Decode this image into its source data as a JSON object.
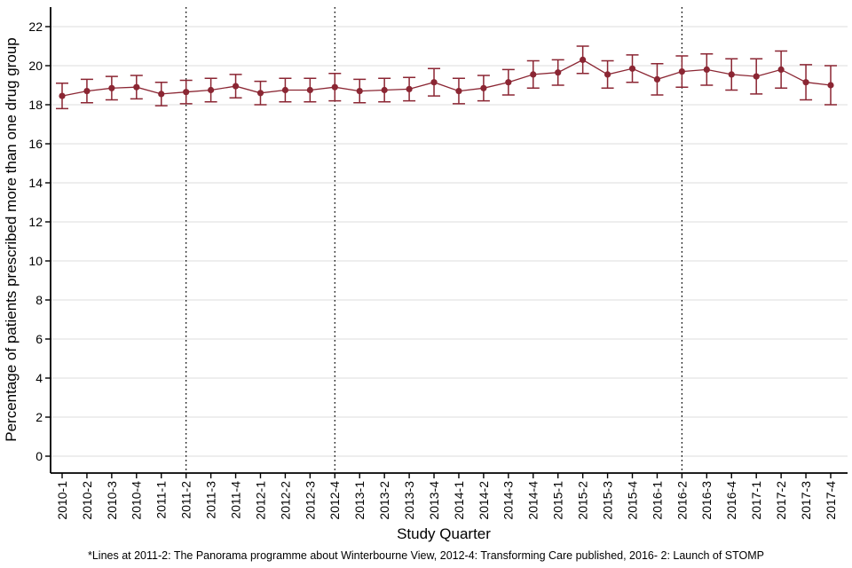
{
  "page": {
    "background": "#ffffff"
  },
  "chart_data": {
    "type": "line",
    "title": "",
    "xlabel": "Study Quarter",
    "ylabel": "Percentage of patients prescribed more than one drug group",
    "footnote": "*Lines at 2011-2: The Panorama programme about Winterbourne View, 2012-4: Transforming Care published, 2016- 2: Launch of STOMP",
    "categories": [
      "2010-1",
      "2010-2",
      "2010-3",
      "2010-4",
      "2011-1",
      "2011-2",
      "2011-3",
      "2011-4",
      "2012-1",
      "2012-2",
      "2012-3",
      "2012-4",
      "2013-1",
      "2013-2",
      "2013-3",
      "2013-4",
      "2014-1",
      "2014-2",
      "2014-3",
      "2014-4",
      "2015-1",
      "2015-2",
      "2015-3",
      "2015-4",
      "2016-1",
      "2016-2",
      "2016-3",
      "2016-4",
      "2017-1",
      "2017-2",
      "2017-3",
      "2017-4"
    ],
    "series": [
      {
        "name": "Percentage of patients prescribed more than one drug group",
        "values": [
          18.45,
          18.7,
          18.85,
          18.9,
          18.55,
          18.65,
          18.75,
          18.95,
          18.6,
          18.75,
          18.75,
          18.9,
          18.7,
          18.75,
          18.8,
          19.15,
          18.7,
          18.85,
          19.15,
          19.55,
          19.65,
          20.3,
          19.55,
          19.85,
          19.3,
          19.7,
          19.8,
          19.55,
          19.45,
          19.8,
          19.15,
          19.0
        ],
        "ci_lower": [
          17.8,
          18.1,
          18.25,
          18.3,
          17.95,
          18.05,
          18.15,
          18.35,
          18.0,
          18.15,
          18.15,
          18.2,
          18.1,
          18.15,
          18.2,
          18.45,
          18.05,
          18.2,
          18.5,
          18.85,
          19.0,
          19.6,
          18.85,
          19.15,
          18.5,
          18.9,
          19.0,
          18.75,
          18.55,
          18.85,
          18.25,
          18.0
        ],
        "ci_upper": [
          19.1,
          19.3,
          19.45,
          19.5,
          19.15,
          19.25,
          19.35,
          19.55,
          19.2,
          19.35,
          19.35,
          19.6,
          19.3,
          19.35,
          19.4,
          19.85,
          19.35,
          19.5,
          19.8,
          20.25,
          20.3,
          21.0,
          20.25,
          20.55,
          20.1,
          20.5,
          20.6,
          20.35,
          20.35,
          20.75,
          20.05,
          20.0
        ]
      }
    ],
    "y_ticks": [
      0,
      2,
      4,
      6,
      8,
      10,
      12,
      14,
      16,
      18,
      20,
      22
    ],
    "ylim": [
      -0.9,
      23.0
    ],
    "grid": "horizontal-major-only",
    "legend": "none",
    "error_bars": true,
    "marker": "circle",
    "reference_lines": [
      {
        "category": "2011-2",
        "style": "dotted"
      },
      {
        "category": "2012-4",
        "style": "dotted"
      },
      {
        "category": "2016-2",
        "style": "dotted"
      }
    ],
    "colors": {
      "series": "#8B2633",
      "gridline": "#e9e9e9",
      "axis": "#000000",
      "reference_line": "#000000",
      "background": "#ffffff"
    }
  }
}
